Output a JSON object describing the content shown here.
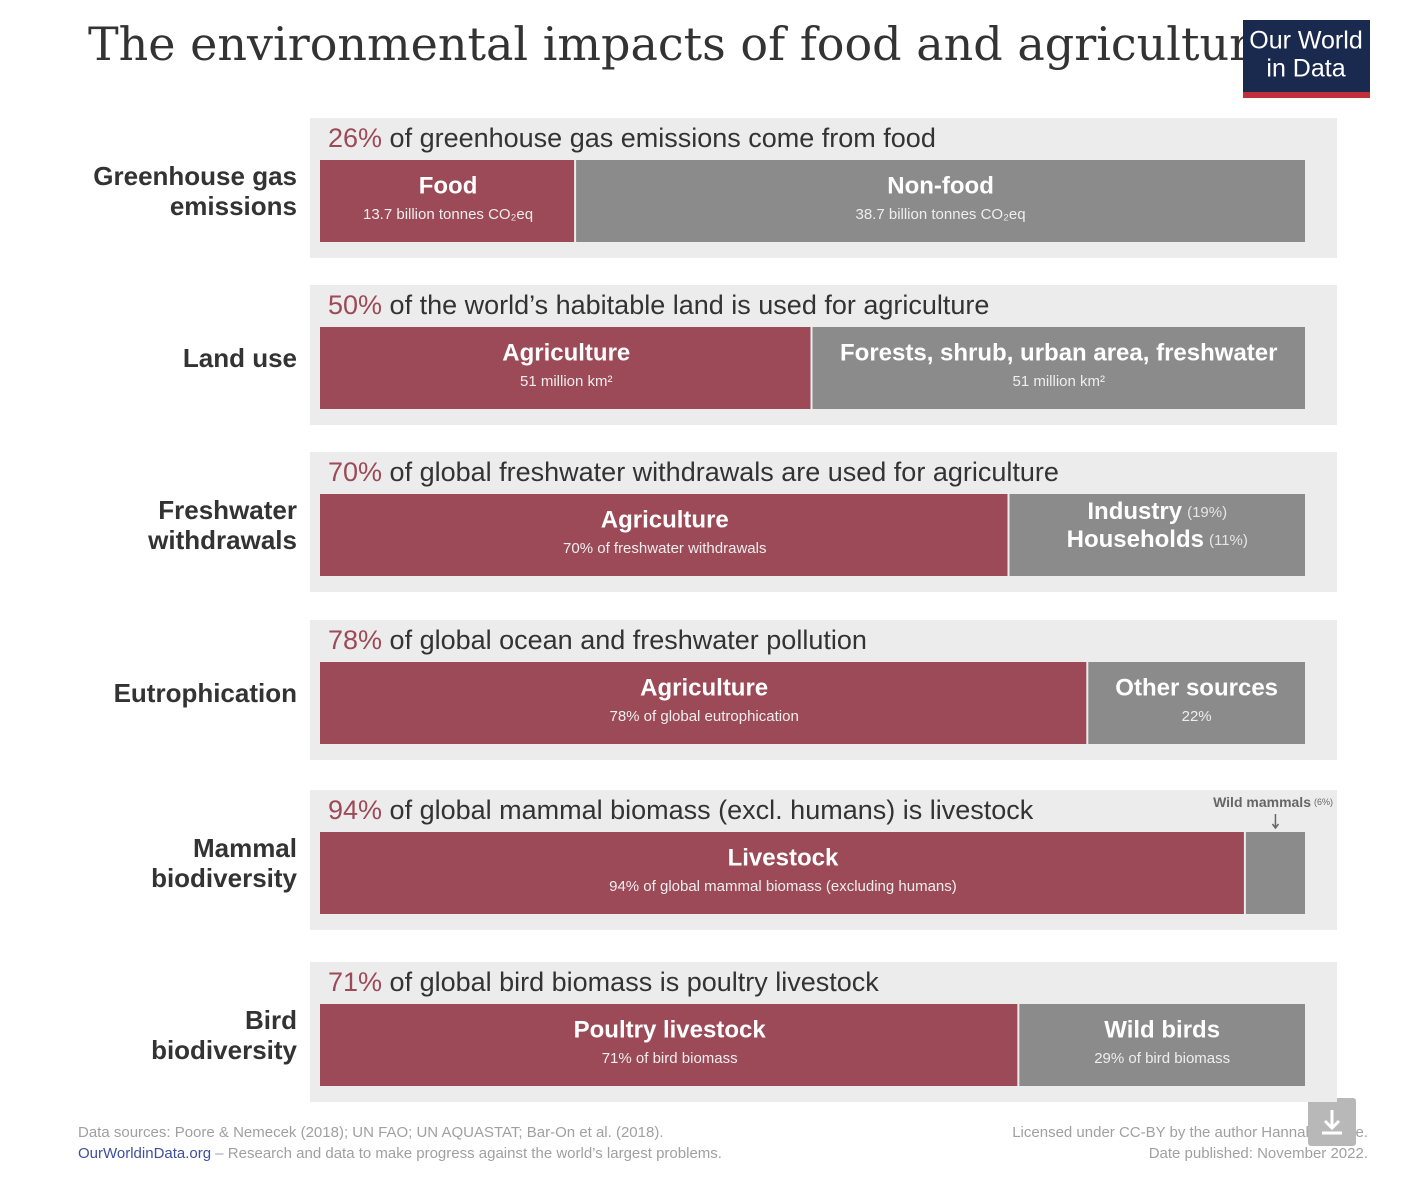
{
  "chart_data": {
    "type": "stacked-bar-panels",
    "title": "The environmental impacts of food and agriculture",
    "xlim": [
      0,
      100
    ],
    "rows": [
      {
        "label": [
          "Greenhouse gas",
          "emissions"
        ],
        "value_label": "26%",
        "headline": " of greenhouse gas emissions come from food",
        "segments": [
          {
            "name": "Food",
            "detail": "13.7 billion tonnes CO₂eq",
            "value": 26,
            "color": "#9c4a57"
          },
          {
            "name": "Non-food",
            "detail": "38.7 billion tonnes CO₂eq",
            "value": 74,
            "color": "#8b8b8b"
          }
        ]
      },
      {
        "label": [
          "Land use"
        ],
        "value_label": "50%",
        "headline": " of the world’s habitable land is used for agriculture",
        "segments": [
          {
            "name": "Agriculture",
            "detail": "51 million km²",
            "value": 50,
            "color": "#9c4a57"
          },
          {
            "name": "Forests, shrub, urban area, freshwater",
            "detail": "51 million km²",
            "value": 50,
            "color": "#8b8b8b"
          }
        ]
      },
      {
        "label": [
          "Freshwater",
          "withdrawals"
        ],
        "value_label": "70%",
        "headline": " of global freshwater withdrawals are used for agriculture",
        "segments": [
          {
            "name": "Agriculture",
            "detail": "70% of freshwater withdrawals",
            "value": 70,
            "color": "#9c4a57"
          },
          {
            "name": "Industry",
            "name_note": "(19%)",
            "name2": "Households",
            "name2_note": "(11%)",
            "value": 30,
            "color": "#8b8b8b"
          }
        ]
      },
      {
        "label": [
          "Eutrophication"
        ],
        "value_label": "78%",
        "headline": " of global ocean and freshwater pollution",
        "segments": [
          {
            "name": "Agriculture",
            "detail": "78% of global eutrophication",
            "value": 78,
            "color": "#9c4a57"
          },
          {
            "name": "Other sources",
            "detail": "22%",
            "value": 22,
            "color": "#8b8b8b"
          }
        ]
      },
      {
        "label": [
          "Mammal",
          "biodiversity"
        ],
        "value_label": "94%",
        "headline": " of global mammal biomass (excl. humans) is livestock",
        "segments": [
          {
            "name": "Livestock",
            "detail": "94% of global mammal biomass (excluding humans)",
            "value": 94,
            "color": "#9c4a57"
          },
          {
            "callout": "Wild mammals",
            "callout_note": "(6%)",
            "value": 6,
            "color": "#8b8b8b"
          }
        ]
      },
      {
        "label": [
          "Bird",
          "biodiversity"
        ],
        "value_label": "71%",
        "headline": " of global bird biomass is poultry livestock",
        "segments": [
          {
            "name": "Poultry livestock",
            "detail": "71% of bird biomass",
            "value": 71,
            "color": "#9c4a57"
          },
          {
            "name": "Wild birds",
            "detail": "29% of bird biomass",
            "value": 29,
            "color": "#8b8b8b"
          }
        ]
      }
    ]
  },
  "logo": [
    "Our World",
    "in Data"
  ],
  "footer": {
    "sources": "Data sources: Poore & Nemecek (2018); UN FAO; UN AQUASTAT; Bar-On et al. (2018).",
    "site": "OurWorldinData.org",
    "tagline": " – Research and data to make progress against the world’s largest problems.",
    "license": "Licensed under CC-BY by the author Hannah Ritchie.",
    "date": "Date published: November 2022."
  }
}
